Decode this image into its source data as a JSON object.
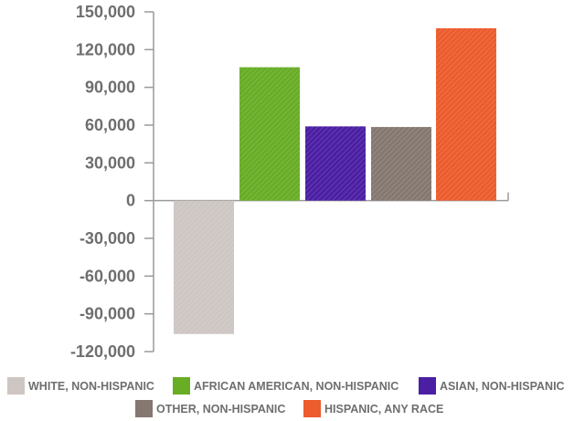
{
  "chart_data": {
    "type": "bar",
    "title": "",
    "xlabel": "",
    "ylabel": "",
    "ylim": [
      -120000,
      150000
    ],
    "yticks": [
      150000,
      120000,
      90000,
      60000,
      30000,
      0,
      -30000,
      -60000,
      -90000,
      -120000
    ],
    "ytick_labels": [
      "150,000",
      "120,000",
      "90,000",
      "60,000",
      "30,000",
      "0",
      "-30,000",
      "-60,000",
      "-90,000",
      "-120,000"
    ],
    "grid": false,
    "legend_position": "bottom",
    "categories": [
      "WHITE, NON-HISPANIC",
      "AFRICAN AMERICAN, NON-HISPANIC",
      "ASIAN, NON-HISPANIC",
      "OTHER, NON-HISPANIC",
      "HISPANIC, ANY RACE"
    ],
    "values": [
      -106000,
      106000,
      59000,
      58500,
      137000
    ],
    "colors": [
      "#cdc6c2",
      "#68ad26",
      "#4b1fa3",
      "#857871",
      "#ec5c2d"
    ]
  }
}
